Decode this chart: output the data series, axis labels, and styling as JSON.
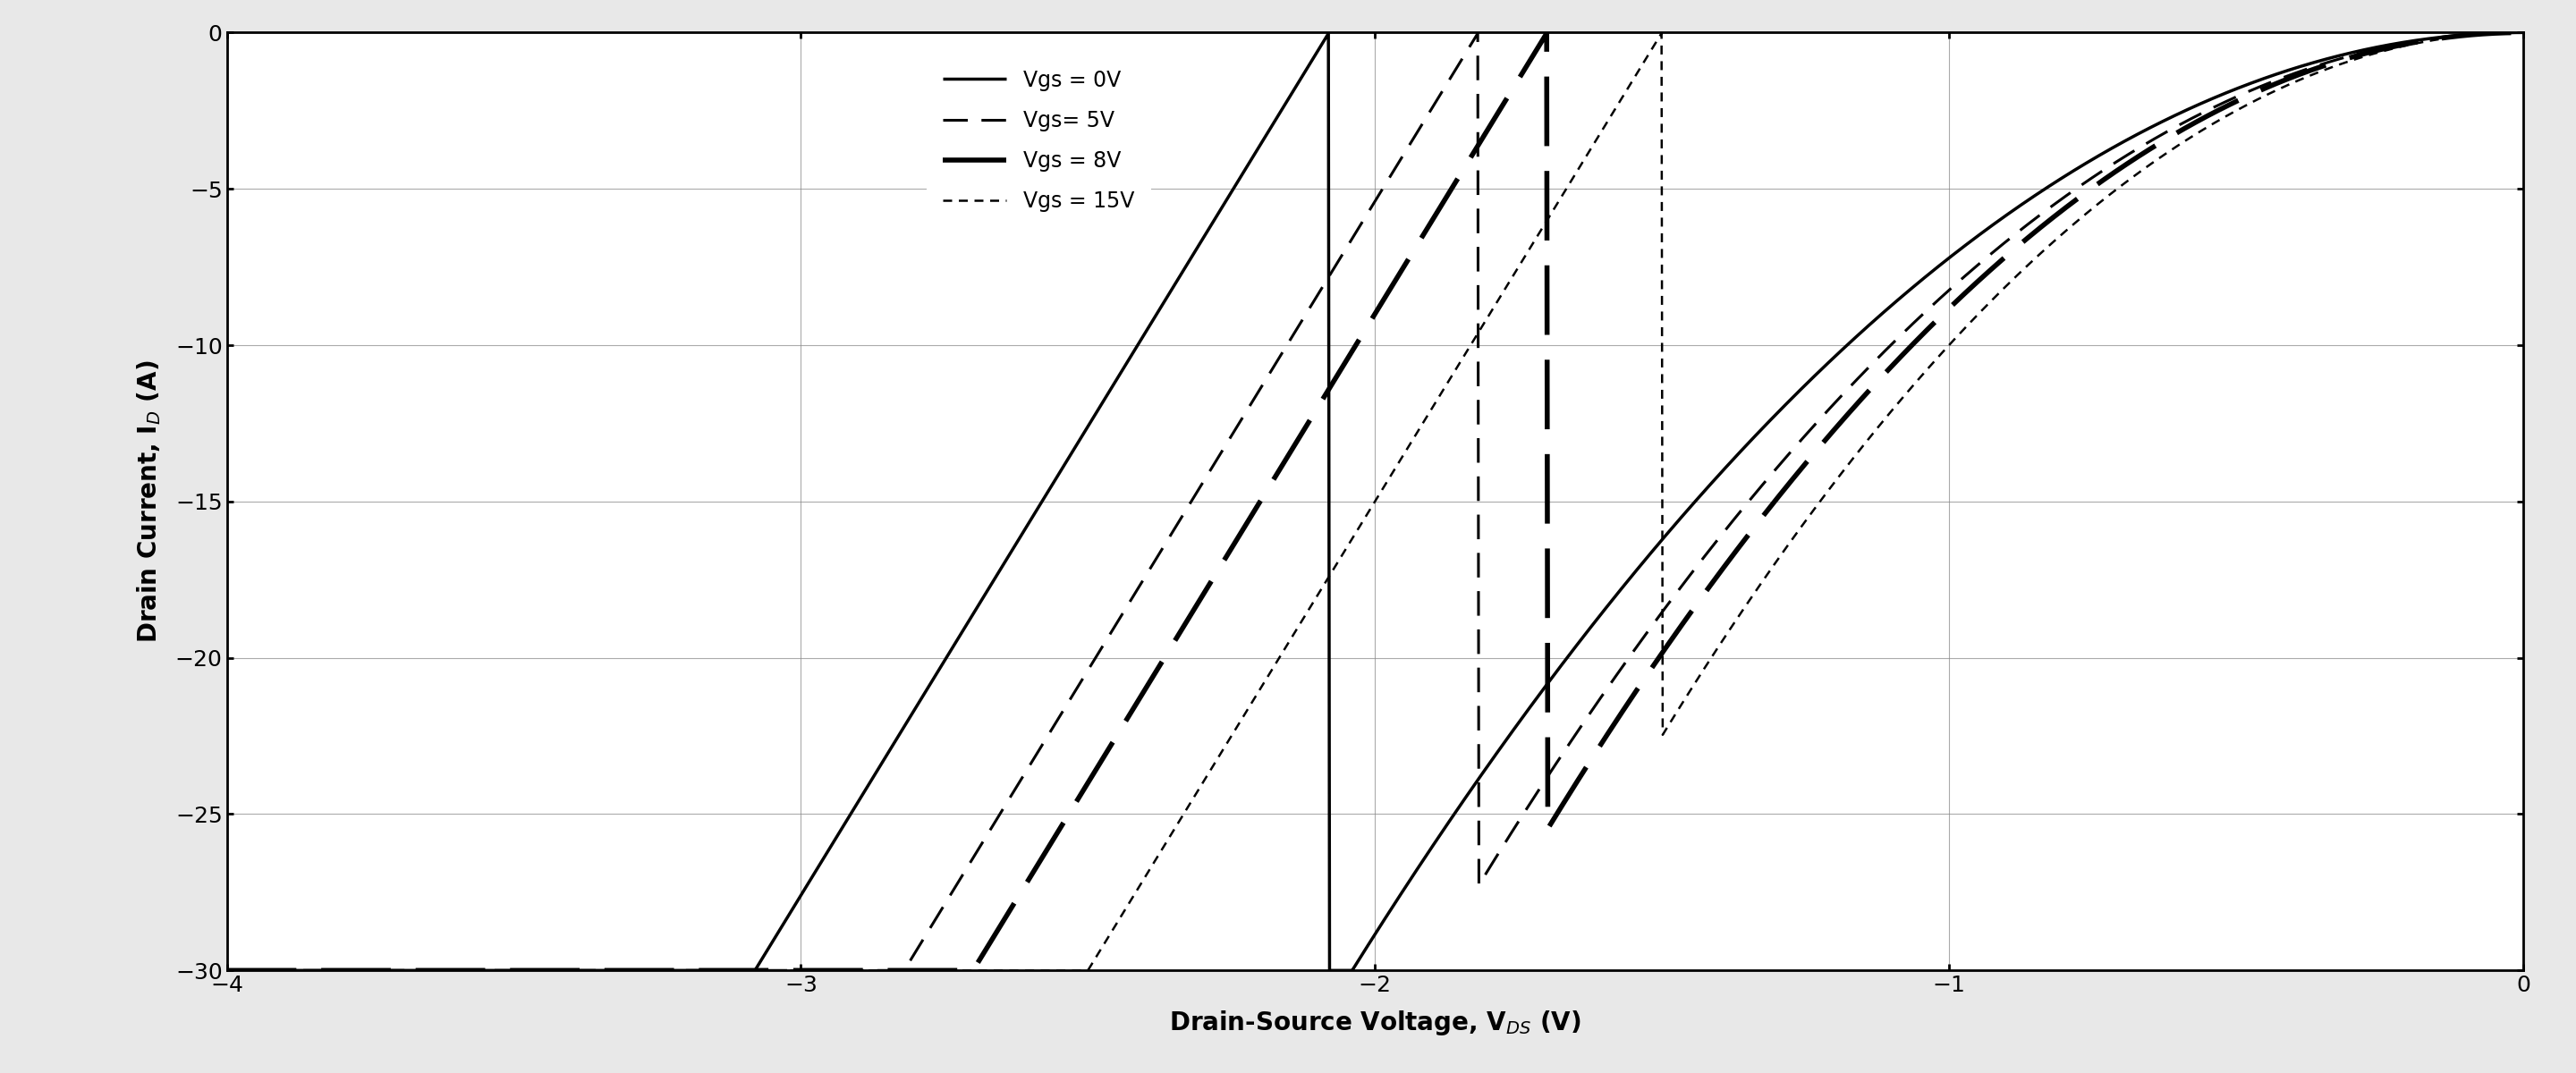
{
  "title": "",
  "xlabel": "Drain-Source Voltage, V$_{DS}$ (V)",
  "ylabel": "Drain Current, I$_D$ (A)",
  "xlim": [
    -4,
    0
  ],
  "ylim": [
    -30,
    0
  ],
  "xticks": [
    -4,
    -3,
    -2,
    -1,
    0
  ],
  "yticks": [
    0,
    -5,
    -10,
    -15,
    -20,
    -25,
    -30
  ],
  "outer_bg": "#e8e8e8",
  "plot_bg": "#ffffff",
  "grid_color": "#888888",
  "curves": [
    {
      "label": "Vgs = 0V",
      "linestyle": "solid",
      "linewidth": 2.5,
      "color": "#000000",
      "dash_pattern": null,
      "vds_knee": -2.08,
      "slope": 30.0
    },
    {
      "label": "Vgs= 5V",
      "linestyle": "dashed",
      "linewidth": 2.2,
      "color": "#000000",
      "dash_pattern": [
        9,
        5
      ],
      "vds_knee": -1.82,
      "slope": 30.0
    },
    {
      "label": "Vgs = 8V",
      "linestyle": "dashed",
      "linewidth": 4.0,
      "color": "#000000",
      "dash_pattern": [
        14,
        5
      ],
      "vds_knee": -1.7,
      "slope": 30.0
    },
    {
      "label": "Vgs = 15V",
      "linestyle": "dashed",
      "linewidth": 1.8,
      "color": "#000000",
      "dash_pattern": [
        4,
        3
      ],
      "vds_knee": -1.5,
      "slope": 30.0
    }
  ]
}
